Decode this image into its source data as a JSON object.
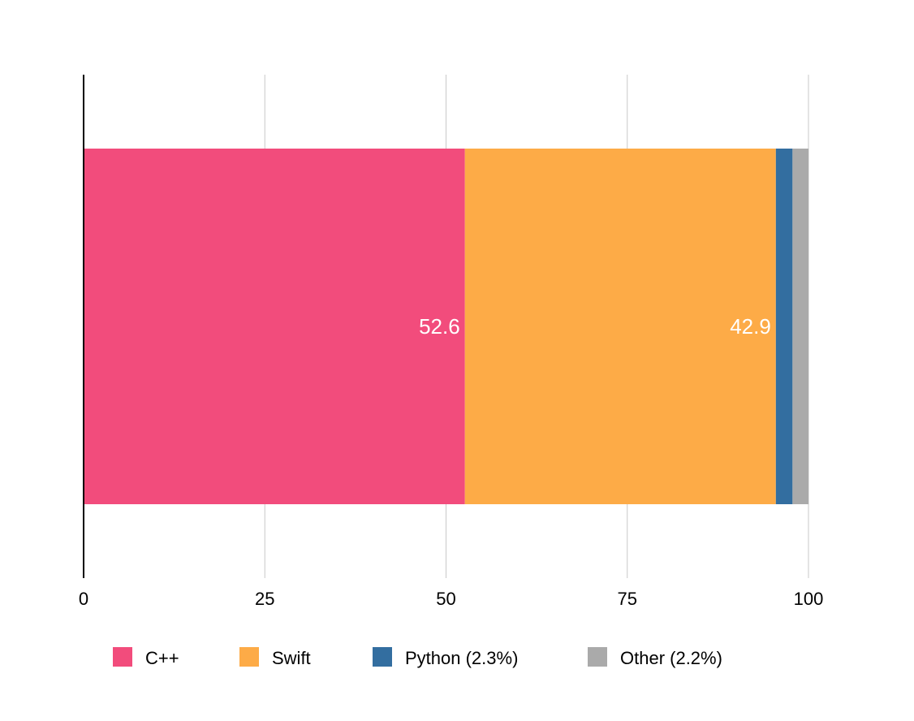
{
  "chart_data": {
    "type": "bar",
    "orientation": "horizontal",
    "stacked": true,
    "xlim": [
      0,
      100
    ],
    "xticks": [
      0,
      25,
      50,
      75,
      100
    ],
    "grid": true,
    "legend_position": "bottom",
    "categories": [
      ""
    ],
    "series": [
      {
        "name": "C++",
        "legend_label": "C++",
        "values": [
          52.6
        ],
        "color": "#f24c7c",
        "data_label": "52.6"
      },
      {
        "name": "Swift",
        "legend_label": "Swift",
        "values": [
          42.9
        ],
        "color": "#fdab47",
        "data_label": "42.9"
      },
      {
        "name": "Python",
        "legend_label": "Python (2.3%)",
        "values": [
          2.3
        ],
        "color": "#336ea0",
        "data_label": ""
      },
      {
        "name": "Other",
        "legend_label": "Other (2.2%)",
        "values": [
          2.2
        ],
        "color": "#aaaaaa",
        "data_label": ""
      }
    ]
  }
}
